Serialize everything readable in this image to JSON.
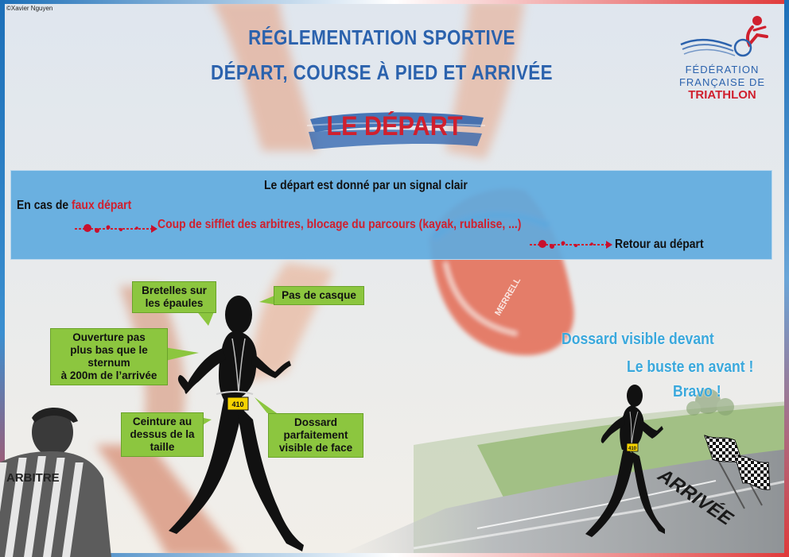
{
  "credit": "©Xavier Nguyen",
  "header": {
    "title_line1": "RÉGLEMENTATION SPORTIVE",
    "title_line2": "DÉPART, COURSE À PIED ET ARRIVÉE",
    "section_title": "LE DÉPART"
  },
  "logo": {
    "line1": "FÉDÉRATION",
    "line2": "FRANÇAISE DE",
    "line3": "TRIATHLON"
  },
  "band": {
    "signal": "Le départ est donné par un signal clair",
    "false_start_prefix": "En cas de ",
    "false_start_highlight": "faux départ",
    "consequence": "Coup de sifflet des arbitres, blocage du parcours (kayak, rubalise, ...)",
    "return": "Retour au départ"
  },
  "callouts": {
    "bretelles": [
      "Bretelles sur",
      "les épaules"
    ],
    "casque": [
      "Pas de casque"
    ],
    "ouverture": [
      "Ouverture pas",
      "plus bas que le",
      "sternum",
      "à 200m de l’arrivée"
    ],
    "ceinture": [
      "Ceinture au",
      "dessus de la",
      "taille"
    ],
    "dossard": [
      "Dossard",
      "parfaitement",
      "visible de face"
    ]
  },
  "bib_number": "410",
  "bib_number_small": "410",
  "referee_label": "ARBITRE",
  "finish_label": "ARRIVÉE",
  "captions": {
    "c1": "Dossard visible devant",
    "c2": "Le buste en avant !",
    "c3": "Bravo !"
  },
  "colors": {
    "title_blue": "#2b62ad",
    "accent_red": "#d0202e",
    "band_blue": "#60aade",
    "callout_green": "#8cc63f",
    "caption_blue": "#3aa8dc"
  }
}
